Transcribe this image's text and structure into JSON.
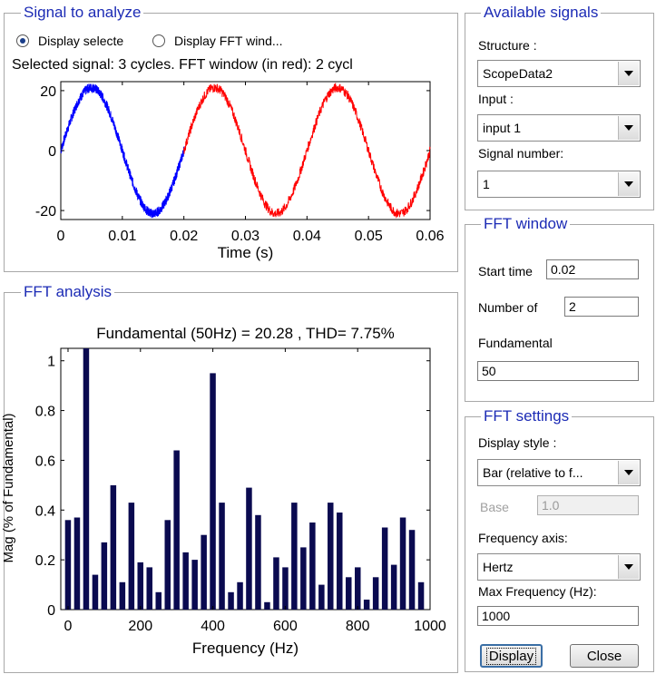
{
  "signal_panel": {
    "title": "Signal to analyze",
    "radio_selected_label": "Display selecte",
    "radio_fft_label": "Display FFT wind...",
    "status": "Selected signal: 3 cycles. FFT window (in red): 2 cycl"
  },
  "time_chart": {
    "type": "line",
    "xlabel": "Time (s)",
    "xlim": [
      0,
      0.06
    ],
    "ylim": [
      -23,
      23
    ],
    "x_ticks": [
      "0",
      "0.01",
      "0.02",
      "0.03",
      "0.04",
      "0.05",
      "0.06"
    ],
    "y_ticks": [
      "20",
      "0",
      "-20"
    ],
    "series": [
      {
        "color": "#0000ff",
        "x_range": [
          0,
          0.02
        ]
      },
      {
        "color": "#ff0000",
        "x_range": [
          0.02,
          0.06
        ]
      }
    ],
    "amplitude": 21,
    "frequency_hz": 50
  },
  "fft_panel": {
    "title": "FFT analysis"
  },
  "chart_data": {
    "type": "bar",
    "title": "Fundamental (50Hz) = 20.28 , THD= 7.75%",
    "xlabel": "Frequency (Hz)",
    "ylabel": "Mag (% of Fundamental)",
    "xlim": [
      -20,
      1000
    ],
    "ylim": [
      0,
      1.05
    ],
    "x_ticks": [
      "0",
      "200",
      "400",
      "600",
      "800",
      "1000"
    ],
    "y_ticks": [
      "0",
      "0.2",
      "0.4",
      "0.6",
      "0.8",
      "1"
    ],
    "bar_color": "#0a0a50",
    "x": [
      0,
      25,
      50,
      75,
      100,
      125,
      150,
      175,
      200,
      225,
      250,
      275,
      300,
      325,
      350,
      375,
      400,
      425,
      450,
      475,
      500,
      525,
      550,
      575,
      600,
      625,
      650,
      675,
      700,
      725,
      750,
      775,
      800,
      825,
      850,
      875,
      900,
      925,
      950,
      975
    ],
    "values": [
      0.36,
      0.37,
      1.05,
      0.14,
      0.27,
      0.5,
      0.11,
      0.43,
      0.19,
      0.17,
      0.07,
      0.36,
      0.64,
      0.23,
      0.2,
      0.3,
      0.95,
      0.43,
      0.07,
      0.11,
      0.49,
      0.38,
      0.03,
      0.21,
      0.17,
      0.43,
      0.25,
      0.35,
      0.1,
      0.43,
      0.39,
      0.13,
      0.17,
      0.04,
      0.13,
      0.33,
      0.18,
      0.37,
      0.32,
      0.11
    ]
  },
  "available_signals": {
    "title": "Available signals",
    "structure_label": "Structure :",
    "structure_value": "ScopeData2",
    "input_label": "Input :",
    "input_value": "input 1",
    "signal_number_label": "Signal number:",
    "signal_number_value": "1"
  },
  "fft_window": {
    "title": "FFT window",
    "start_time_label": "Start time",
    "start_time_value": "0.02",
    "cycles_label": "Number of",
    "cycles_value": "2",
    "fundamental_label": "Fundamental",
    "fundamental_value": "50"
  },
  "fft_settings": {
    "title": "FFT settings",
    "display_style_label": "Display style :",
    "display_style_value": "Bar (relative to f...",
    "base_label": "Base",
    "base_value": "1.0",
    "freq_axis_label": "Frequency axis:",
    "freq_axis_value": "Hertz",
    "max_freq_label": "Max Frequency (Hz):",
    "max_freq_value": "1000"
  },
  "buttons": {
    "display": "Display",
    "close": "Close"
  }
}
